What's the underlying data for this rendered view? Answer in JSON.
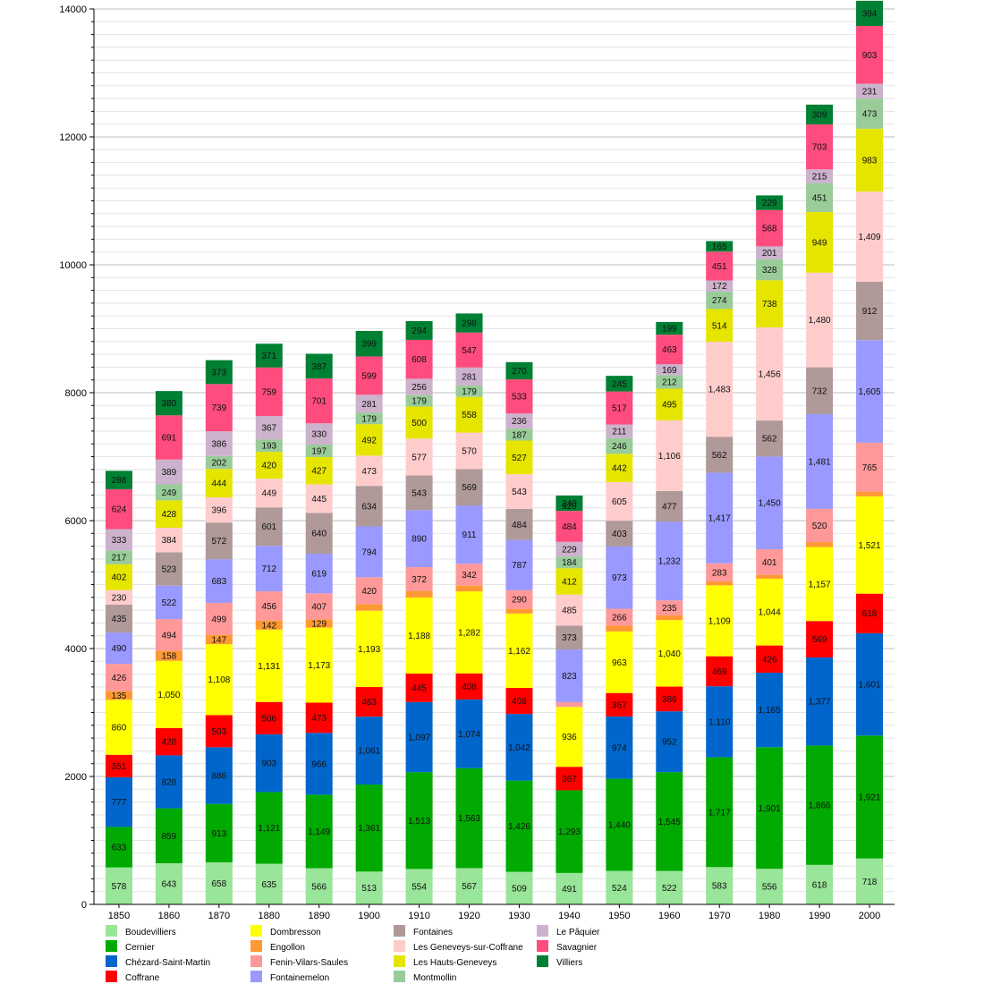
{
  "chart_data": {
    "type": "bar",
    "stacked": true,
    "title": "",
    "xlabel": "",
    "ylabel": "",
    "ylim": [
      0,
      14000
    ],
    "yticks": [
      0,
      2000,
      4000,
      6000,
      8000,
      10000,
      12000,
      14000
    ],
    "grid": true,
    "legend_position": "bottom",
    "categories": [
      "1850",
      "1860",
      "1870",
      "1880",
      "1890",
      "1900",
      "1910",
      "1920",
      "1930",
      "1940",
      "1950",
      "1960",
      "1970",
      "1980",
      "1990",
      "2000"
    ],
    "series": [
      {
        "name": "Boudevilliers",
        "color": "#99e599",
        "values": [
          578,
          643,
          658,
          635,
          566,
          513,
          554,
          567,
          509,
          491,
          524,
          522,
          583,
          556,
          618,
          718
        ]
      },
      {
        "name": "Cernier",
        "color": "#00aa00",
        "values": [
          633,
          859,
          913,
          1121,
          1149,
          1361,
          1513,
          1563,
          1426,
          1293,
          1440,
          1545,
          1717,
          1901,
          1866,
          1921
        ]
      },
      {
        "name": "Chézard-Saint-Martin",
        "color": "#0066cc",
        "values": [
          777,
          828,
          886,
          903,
          966,
          1061,
          1097,
          1074,
          1042,
          0,
          974,
          952,
          1110,
          1165,
          1377,
          1601
        ]
      },
      {
        "name": "Coffrane",
        "color": "#ff0000",
        "values": [
          351,
          428,
          503,
          506,
          473,
          463,
          445,
          408,
          408,
          367,
          367,
          386,
          469,
          426,
          569,
          618
        ]
      },
      {
        "name": "Dombresson",
        "color": "#ffff00",
        "values": [
          860,
          1050,
          1108,
          1131,
          1173,
          1193,
          1188,
          1282,
          1162,
          936,
          963,
          1040,
          1109,
          1044,
          1157,
          1521
        ]
      },
      {
        "name": "Engollon",
        "color": "#ff9933",
        "values": [
          135,
          158,
          147,
          142,
          129,
          104,
          104,
          90,
          74,
          0,
          88,
          73,
          62,
          60,
          77,
          74
        ]
      },
      {
        "name": "Fenin-Vilars-Saules",
        "color": "#ff9999",
        "values": [
          426,
          494,
          499,
          456,
          407,
          420,
          372,
          342,
          290,
          75,
          266,
          235,
          283,
          401,
          520,
          765
        ]
      },
      {
        "name": "Fontainemelon",
        "color": "#9999ff",
        "values": [
          490,
          522,
          683,
          712,
          619,
          794,
          890,
          911,
          787,
          823,
          973,
          1232,
          1417,
          1450,
          1481,
          1605
        ]
      },
      {
        "name": "Fontaines",
        "color": "#b09999",
        "values": [
          435,
          523,
          572,
          601,
          640,
          634,
          543,
          569,
          484,
          373,
          403,
          477,
          562,
          562,
          732,
          912
        ]
      },
      {
        "name": "Les Geneveys-sur-Coffrane",
        "color": "#ffcccc",
        "values": [
          230,
          384,
          396,
          449,
          445,
          473,
          577,
          570,
          543,
          485,
          605,
          1106,
          1483,
          1456,
          1480,
          1409
        ]
      },
      {
        "name": "Les Hauts-Geneveys",
        "color": "#e5e500",
        "values": [
          402,
          428,
          444,
          420,
          427,
          492,
          500,
          558,
          527,
          412,
          442,
          495,
          514,
          738,
          949,
          983
        ]
      },
      {
        "name": "Montmollin",
        "color": "#99cc99",
        "values": [
          217,
          249,
          202,
          193,
          197,
          179,
          179,
          179,
          187,
          184,
          246,
          212,
          274,
          328,
          451,
          473
        ]
      },
      {
        "name": "Le Pâquier",
        "color": "#ccb2cc",
        "values": [
          333,
          389,
          386,
          367,
          330,
          281,
          256,
          281,
          236,
          229,
          211,
          169,
          172,
          201,
          215,
          231
        ]
      },
      {
        "name": "Savagnier",
        "color": "#ff4c7f",
        "values": [
          624,
          691,
          739,
          759,
          701,
          599,
          608,
          547,
          533,
          484,
          517,
          463,
          451,
          568,
          703,
          903
        ]
      },
      {
        "name": "Villiers",
        "color": "#008033",
        "values": [
          288,
          380,
          373,
          371,
          387,
          399,
          294,
          298,
          270,
          240,
          245,
          199,
          165,
          229,
          309,
          394
        ]
      }
    ],
    "extra_labels": [
      {
        "category": "1940",
        "text": "920"
      }
    ]
  }
}
